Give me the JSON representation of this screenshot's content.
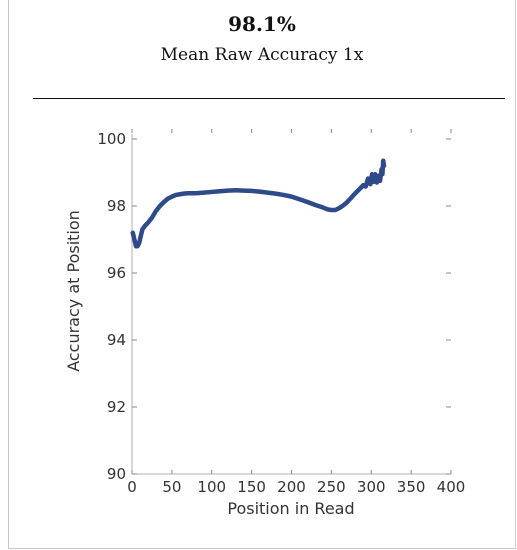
{
  "header": {
    "headline": "98.1%",
    "subtitle": "Mean Raw Accuracy 1x"
  },
  "chart_data": {
    "type": "line",
    "title": "",
    "xlabel": "Position in Read",
    "ylabel": "Accuracy at Position",
    "xlim": [
      0,
      400
    ],
    "ylim": [
      90,
      100
    ],
    "xticks": [
      0,
      50,
      100,
      150,
      200,
      250,
      300,
      350,
      400
    ],
    "yticks": [
      90,
      92,
      94,
      96,
      98,
      100
    ],
    "grid": false,
    "line_color": "#2e4a8a",
    "series": [
      {
        "x": [
          1,
          3,
          5,
          7,
          9,
          11,
          13,
          16,
          20,
          25,
          30,
          35,
          40,
          45,
          50,
          55,
          60,
          65,
          70,
          80,
          90,
          100,
          110,
          120,
          130,
          140,
          150,
          160,
          170,
          180,
          190,
          200,
          210,
          220,
          230,
          240,
          245,
          250,
          255,
          260,
          265,
          270,
          275,
          280,
          285,
          290,
          293,
          296,
          299,
          301,
          303,
          305,
          307,
          309,
          311,
          313,
          314,
          315,
          316
        ],
        "y": [
          97.2,
          97.0,
          96.8,
          96.8,
          96.9,
          97.1,
          97.3,
          97.4,
          97.5,
          97.65,
          97.85,
          98.0,
          98.12,
          98.22,
          98.28,
          98.33,
          98.35,
          98.37,
          98.38,
          98.38,
          98.4,
          98.42,
          98.44,
          98.46,
          98.47,
          98.46,
          98.45,
          98.43,
          98.4,
          98.37,
          98.33,
          98.28,
          98.2,
          98.12,
          98.03,
          97.95,
          97.9,
          97.88,
          97.88,
          97.94,
          98.02,
          98.12,
          98.25,
          98.38,
          98.5,
          98.62,
          98.58,
          98.82,
          98.65,
          98.95,
          98.72,
          98.95,
          98.7,
          98.9,
          98.75,
          99.1,
          98.95,
          99.35,
          99.2
        ]
      }
    ]
  }
}
